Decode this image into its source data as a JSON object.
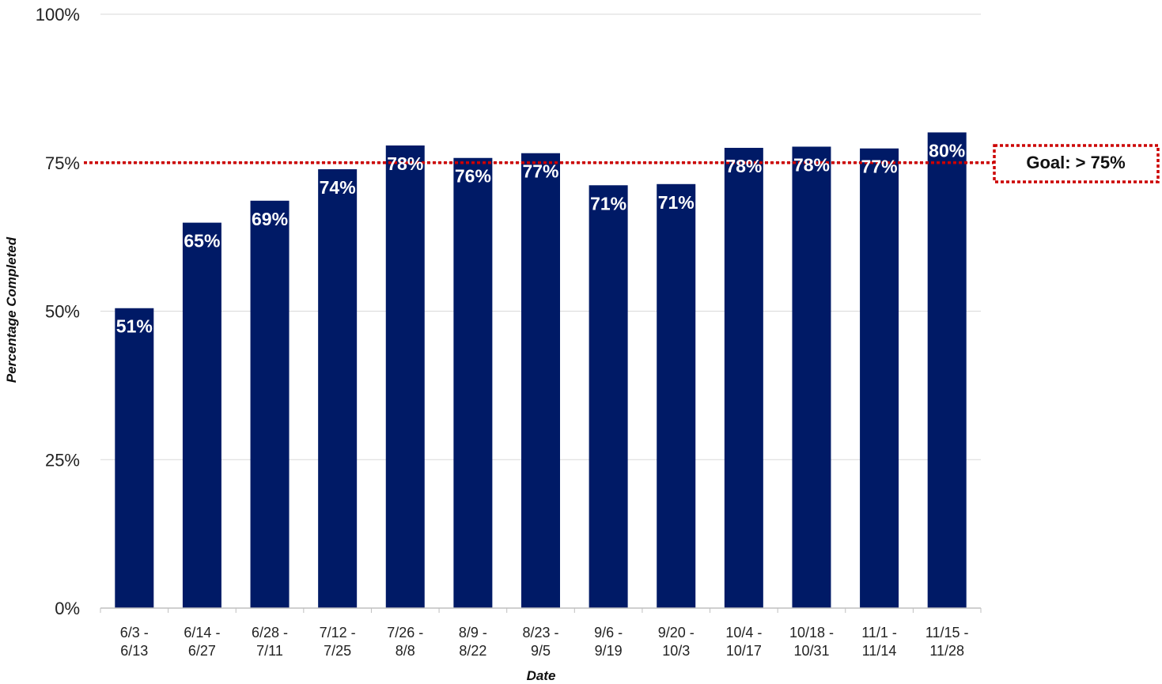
{
  "chart_data": {
    "type": "bar",
    "categories": [
      [
        "6/3 -",
        "6/13"
      ],
      [
        "6/14 -",
        "6/27"
      ],
      [
        "6/28 -",
        "7/11"
      ],
      [
        "7/12 -",
        "7/25"
      ],
      [
        "7/26 -",
        "8/8"
      ],
      [
        "8/9 -",
        "8/22"
      ],
      [
        "8/23 -",
        "9/5"
      ],
      [
        "9/6 -",
        "9/19"
      ],
      [
        "9/20 -",
        "10/3"
      ],
      [
        "10/4 -",
        "10/17"
      ],
      [
        "10/18 -",
        "10/31"
      ],
      [
        "11/1 -",
        "11/14"
      ],
      [
        "11/15 -",
        "11/28"
      ]
    ],
    "values": [
      50.5,
      64.9,
      68.6,
      73.9,
      77.9,
      75.8,
      76.6,
      71.2,
      71.4,
      77.5,
      77.7,
      77.4,
      80.1
    ],
    "data_labels": [
      "51%",
      "65%",
      "69%",
      "74%",
      "78%",
      "76%",
      "77%",
      "71%",
      "71%",
      "78%",
      "78%",
      "77%",
      "80%"
    ],
    "xlabel": "Date",
    "ylabel": "Percentage Completed",
    "ylim": [
      0,
      100
    ],
    "yticks": [
      0,
      25,
      50,
      75,
      100
    ],
    "ytick_labels": [
      "0%",
      "25%",
      "50%",
      "75%",
      "100%"
    ],
    "grid": true,
    "bar_color": "#001a66",
    "goal": {
      "value": 75,
      "label": "Goal: > 75%",
      "color": "#cc0000"
    }
  }
}
